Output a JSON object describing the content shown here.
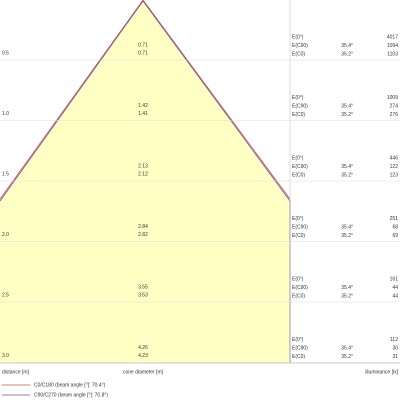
{
  "rows": [
    {
      "distance": "0.5",
      "diameters": [
        "0.71",
        "0.71"
      ],
      "labels": [
        "E(0°)",
        "E(C90)",
        "E(C0)"
      ],
      "angles": [
        "35.4°",
        "35.2°"
      ],
      "illuminance": [
        "4017",
        "1094",
        "1103"
      ]
    },
    {
      "distance": "1.0",
      "diameters": [
        "1.42",
        "1.41"
      ],
      "labels": [
        "E(0°)",
        "E(C90)",
        "E(C0)"
      ],
      "angles": [
        "35.4°",
        "35.2°"
      ],
      "illuminance": [
        "1009",
        "274",
        "276"
      ]
    },
    {
      "distance": "1.5",
      "diameters": [
        "2.13",
        "2.12"
      ],
      "labels": [
        "E(0°)",
        "E(C90)",
        "E(C0)"
      ],
      "angles": [
        "35.4°",
        "35.2°"
      ],
      "illuminance": [
        "446",
        "122",
        "123"
      ]
    },
    {
      "distance": "2.0",
      "diameters": [
        "2.84",
        "2.82"
      ],
      "labels": [
        "E(0°)",
        "E(C90)",
        "E(C0)"
      ],
      "angles": [
        "35.4°",
        "35.2°"
      ],
      "illuminance": [
        "251",
        "68",
        "69"
      ]
    },
    {
      "distance": "2.5",
      "diameters": [
        "3.55",
        "3.53"
      ],
      "labels": [
        "E(0°)",
        "E(C90)",
        "E(C0)"
      ],
      "angles": [
        "35.4°",
        "35.2°"
      ],
      "illuminance": [
        "161",
        "44",
        "44"
      ]
    },
    {
      "distance": "3.0",
      "diameters": [
        "4.26",
        "4.23"
      ],
      "labels": [
        "E(0°)",
        "E(C90)",
        "E(C0)"
      ],
      "angles": [
        "35.4°",
        "35.2°"
      ],
      "illuminance": [
        "112",
        "30",
        "31"
      ]
    }
  ],
  "axis": {
    "distance": "distance [m]",
    "diameter": "cone diameter [m]",
    "illuminance": "illuminance [lx]"
  },
  "legend": [
    "C0/C180 (beam angle [°]: 70.4°)",
    "C90/C270 (beam angle [°]: 70.8°)"
  ]
}
